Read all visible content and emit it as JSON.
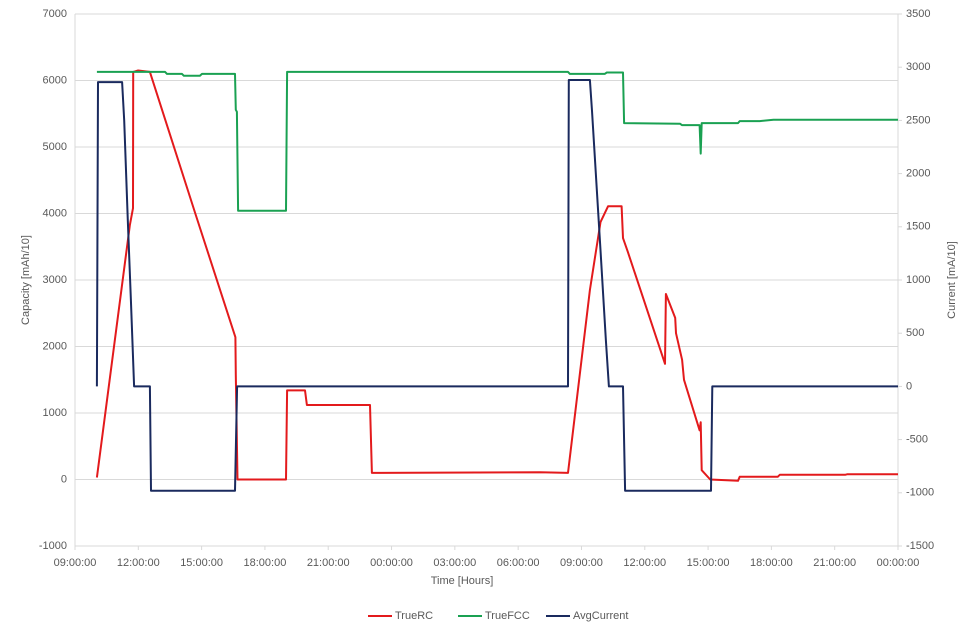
{
  "chart_data": {
    "type": "line",
    "x_label": "Time [Hours]",
    "y_label": "Capacity [mAh/10]",
    "y2_label": "Current [mA/10]",
    "xlim": [
      9,
      48
    ],
    "xticks": [
      {
        "value": 9,
        "label": "09:00:00"
      },
      {
        "value": 12,
        "label": "12:00:00"
      },
      {
        "value": 15,
        "label": "15:00:00"
      },
      {
        "value": 18,
        "label": "18:00:00"
      },
      {
        "value": 21,
        "label": "21:00:00"
      },
      {
        "value": 24,
        "label": "00:00:00"
      },
      {
        "value": 27,
        "label": "03:00:00"
      },
      {
        "value": 30,
        "label": "06:00:00"
      },
      {
        "value": 33,
        "label": "09:00:00"
      },
      {
        "value": 36,
        "label": "12:00:00"
      },
      {
        "value": 39,
        "label": "15:00:00"
      },
      {
        "value": 42,
        "label": "18:00:00"
      },
      {
        "value": 45,
        "label": "21:00:00"
      },
      {
        "value": 48,
        "label": "00:00:00"
      }
    ],
    "ylim": [
      -1000,
      7000
    ],
    "yticks": [
      -1000,
      0,
      1000,
      2000,
      3000,
      4000,
      5000,
      6000,
      7000
    ],
    "y2lim": [
      -1500,
      3500
    ],
    "y2ticks": [
      -1500,
      -1000,
      -500,
      0,
      500,
      1000,
      1500,
      2000,
      2500,
      3000,
      3500
    ],
    "grid": true,
    "legend": "bottom",
    "series": [
      {
        "name": "TrueRC",
        "color": "#e31a1c",
        "x": [
          10.04,
          11.6,
          11.75,
          11.76,
          11.99,
          12.55,
          14.7,
          16.6,
          16.62,
          16.7,
          19.0,
          19.05,
          19.9,
          19.99,
          22.98,
          23.07,
          31.04,
          32.36,
          33.4,
          33.9,
          34.26,
          34.9,
          34.97,
          35.2,
          36.96,
          37.0,
          37.44,
          37.48,
          37.77,
          37.86,
          38.6,
          38.65,
          38.7,
          39.1,
          40.42,
          40.5,
          42.3,
          42.4,
          45.5,
          45.6,
          48
        ],
        "values": [
          30,
          3830,
          4080,
          6130,
          6150,
          6130,
          4000,
          2140,
          1570,
          0,
          0,
          1340,
          1340,
          1120,
          1120,
          100,
          110,
          100,
          2850,
          3870,
          4110,
          4110,
          3630,
          3420,
          1740,
          2790,
          2430,
          2200,
          1800,
          1500,
          740,
          860,
          140,
          0,
          -20,
          40,
          40,
          70,
          70,
          80,
          80
        ]
      },
      {
        "name": "TrueFCC",
        "color": "#1aa152",
        "x": [
          10.04,
          13.27,
          13.36,
          14.07,
          14.16,
          14.92,
          15.02,
          16.58,
          16.62,
          16.67,
          16.73,
          19.0,
          19.05,
          32.36,
          32.45,
          34.1,
          34.2,
          34.97,
          35.02,
          37.67,
          37.76,
          38.6,
          38.65,
          38.7,
          40.42,
          40.5,
          41.45,
          42.1,
          48
        ],
        "values": [
          6130,
          6130,
          6100,
          6100,
          6070,
          6070,
          6100,
          6100,
          5560,
          5530,
          4040,
          4040,
          6130,
          6130,
          6100,
          6100,
          6120,
          6120,
          5360,
          5350,
          5330,
          5330,
          4900,
          5360,
          5360,
          5390,
          5390,
          5410,
          5410
        ]
      },
      {
        "name": "AvgCurrent",
        "color": "#1a2a5e",
        "axis": "y2",
        "x": [
          10.04,
          10.09,
          11.23,
          11.33,
          11.5,
          11.65,
          11.8,
          12.55,
          12.6,
          16.58,
          16.68,
          32.36,
          32.4,
          33.4,
          33.5,
          33.9,
          34.16,
          34.3,
          34.97,
          35.07,
          39.14,
          39.2,
          48
        ],
        "values": [
          0,
          2860,
          2860,
          2500,
          1560,
          810,
          0,
          0,
          -980,
          -980,
          0,
          0,
          2880,
          2880,
          2590,
          1280,
          430,
          0,
          0,
          -980,
          -980,
          0,
          0
        ]
      }
    ]
  }
}
